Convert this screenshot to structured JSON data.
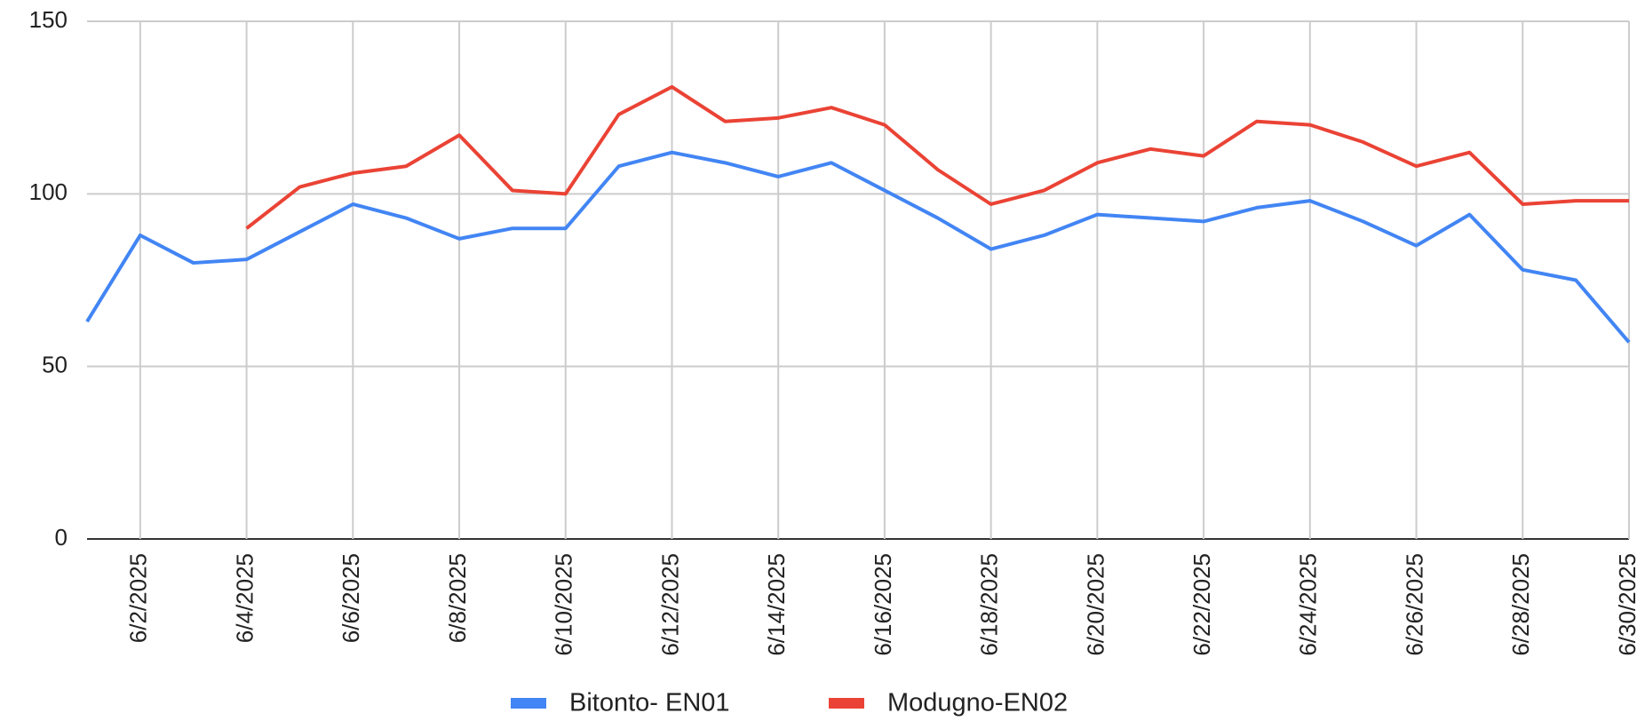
{
  "chart_data": {
    "type": "line",
    "categories": [
      null,
      "6/2/2025",
      null,
      "6/4/2025",
      null,
      "6/6/2025",
      null,
      "6/8/2025",
      null,
      "6/10/2025",
      null,
      "6/12/2025",
      null,
      "6/14/2025",
      null,
      "6/16/2025",
      null,
      "6/18/2025",
      null,
      "6/20/2025",
      null,
      "6/22/2025",
      null,
      "6/24/2025",
      null,
      "6/26/2025",
      null,
      "6/28/2025",
      null,
      "6/30/2025"
    ],
    "series": [
      {
        "name": "Bitonto- EN01",
        "color": "#4285f4",
        "values": [
          63,
          88,
          80,
          81,
          89,
          97,
          93,
          87,
          90,
          90,
          108,
          112,
          109,
          105,
          109,
          101,
          93,
          84,
          88,
          94,
          93,
          92,
          96,
          98,
          92,
          85,
          94,
          78,
          75,
          57
        ]
      },
      {
        "name": "Modugno-EN02",
        "color": "#ea4335",
        "values": [
          null,
          null,
          null,
          90,
          102,
          106,
          108,
          117,
          101,
          100,
          123,
          131,
          121,
          122,
          125,
          120,
          107,
          97,
          101,
          109,
          113,
          111,
          121,
          120,
          115,
          108,
          112,
          97,
          98,
          98
        ]
      }
    ],
    "ylim": [
      0,
      150
    ],
    "yticks": [
      0,
      50,
      100,
      150
    ],
    "grid": true,
    "legend": "bottom"
  }
}
